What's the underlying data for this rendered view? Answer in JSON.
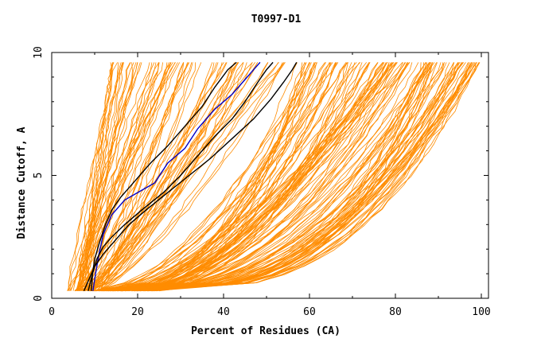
{
  "chart_data": {
    "type": "line",
    "title": "T0997-D1",
    "xlabel": "Percent of Residues (CA)",
    "ylabel": "Distance Cutoff, A",
    "xlim": [
      0,
      100
    ],
    "ylim": [
      0,
      10
    ],
    "xticks": [
      "0",
      "20",
      "40",
      "60",
      "80",
      "100"
    ],
    "yticks": [
      "0",
      "5",
      "10"
    ],
    "grid": false,
    "colors": {
      "background_series": "#ff8c00",
      "highlight_black": "#000000",
      "highlight_blue": "#0000c8"
    },
    "bundles": [
      {
        "count": 40,
        "x_at_0": [
          3.5,
          9
        ],
        "x_at_top": [
          14,
          30
        ],
        "curve": 1.0
      },
      {
        "count": 40,
        "x_at_0": [
          5,
          12
        ],
        "x_at_top": [
          30,
          55
        ],
        "curve": 1.2
      },
      {
        "count": 75,
        "x_at_0": [
          9,
          22
        ],
        "x_at_top": [
          57,
          86
        ],
        "curve": 2.0
      },
      {
        "count": 55,
        "x_at_0": [
          10,
          25
        ],
        "x_at_top": [
          86,
          100
        ],
        "curve": 2.8
      }
    ],
    "series": [
      {
        "color": "black",
        "points": [
          [
            9.2,
            0.3
          ],
          [
            9.5,
            1
          ],
          [
            10,
            1.6
          ],
          [
            11,
            2.2
          ],
          [
            12.5,
            3
          ],
          [
            14,
            3.6
          ],
          [
            16,
            4.1
          ],
          [
            19,
            4.7
          ],
          [
            23,
            5.5
          ],
          [
            27,
            6.2
          ],
          [
            31,
            7
          ],
          [
            35,
            7.8
          ],
          [
            38,
            8.6
          ],
          [
            41,
            9.3
          ],
          [
            43,
            9.6
          ]
        ]
      },
      {
        "color": "blue",
        "points": [
          [
            9.6,
            0.3
          ],
          [
            10.2,
            1
          ],
          [
            11,
            1.8
          ],
          [
            12,
            2.6
          ],
          [
            14,
            3.4
          ],
          [
            17,
            4
          ],
          [
            20,
            4.3
          ],
          [
            24,
            4.7
          ],
          [
            27,
            5.5
          ],
          [
            31,
            6.1
          ],
          [
            34,
            6.9
          ],
          [
            38,
            7.7
          ],
          [
            42,
            8.3
          ],
          [
            45,
            8.9
          ],
          [
            47,
            9.3
          ],
          [
            48.5,
            9.6
          ]
        ]
      },
      {
        "color": "black",
        "points": [
          [
            8.5,
            0.3
          ],
          [
            9.5,
            1
          ],
          [
            10.5,
            1.6
          ],
          [
            12,
            2.1
          ],
          [
            14,
            2.5
          ],
          [
            17,
            3
          ],
          [
            21,
            3.6
          ],
          [
            26,
            4.3
          ],
          [
            30,
            5
          ],
          [
            34,
            5.8
          ],
          [
            38,
            6.6
          ],
          [
            42,
            7.3
          ],
          [
            45,
            8
          ],
          [
            48,
            8.8
          ],
          [
            50,
            9.3
          ],
          [
            51.5,
            9.6
          ]
        ]
      },
      {
        "color": "black",
        "points": [
          [
            7.5,
            0.3
          ],
          [
            9,
            0.9
          ],
          [
            10,
            1.3
          ],
          [
            12,
            1.8
          ],
          [
            15,
            2.4
          ],
          [
            18,
            3
          ],
          [
            22,
            3.6
          ],
          [
            27,
            4.3
          ],
          [
            32,
            5
          ],
          [
            37,
            5.7
          ],
          [
            42,
            6.5
          ],
          [
            47,
            7.3
          ],
          [
            51,
            8.1
          ],
          [
            54,
            8.8
          ],
          [
            56,
            9.3
          ],
          [
            57,
            9.6
          ]
        ]
      }
    ]
  }
}
